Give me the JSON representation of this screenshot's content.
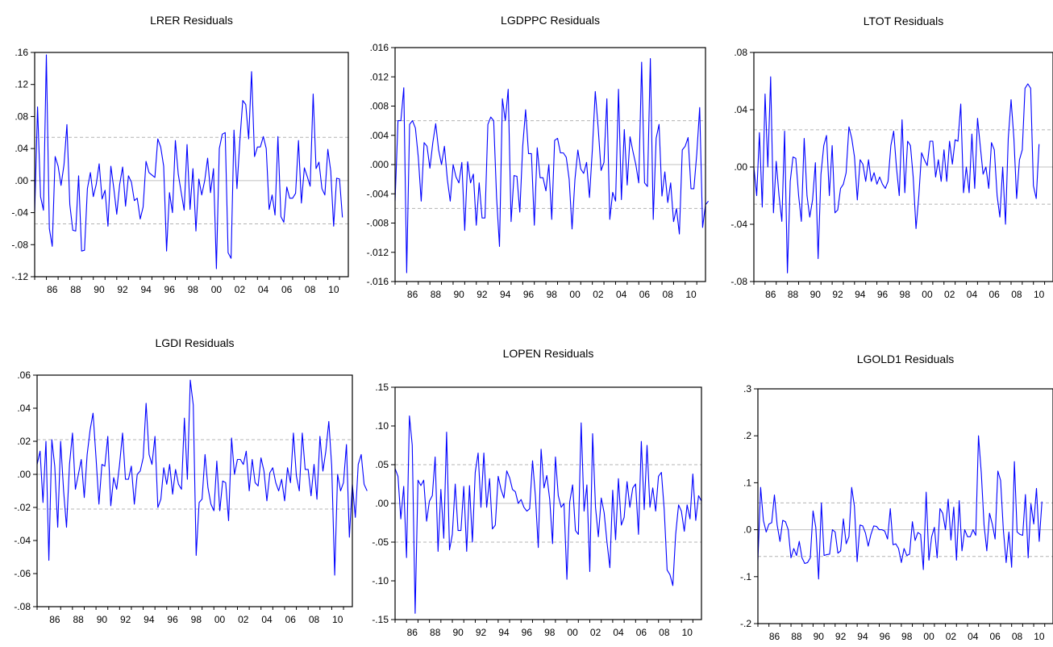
{
  "colors": {
    "series": "#0000ff",
    "band": "#b4b4b4",
    "zero": "#c0c0c0",
    "frame": "#000000"
  },
  "charts": [
    {
      "title": "LRER Residuals",
      "yticks": [
        ".16",
        ".12",
        ".08",
        ".04",
        ".00",
        "-.04",
        "-.08",
        "-.12"
      ],
      "xticks": [
        "86",
        "88",
        "90",
        "92",
        "94",
        "96",
        "98",
        "00",
        "02",
        "04",
        "06",
        "08",
        "10"
      ]
    },
    {
      "title": "LGDPPC Residuals",
      "yticks": [
        ".016",
        ".012",
        ".008",
        ".004",
        ".000",
        "-.004",
        "-.008",
        "-.012",
        "-.016"
      ],
      "xticks": [
        "86",
        "88",
        "90",
        "92",
        "94",
        "96",
        "98",
        "00",
        "02",
        "04",
        "06",
        "08",
        "10"
      ]
    },
    {
      "title": "LTOT Residuals",
      "yticks": [
        ".08",
        ".04",
        ".00",
        "-.04",
        "-.08"
      ],
      "xticks": [
        "86",
        "88",
        "90",
        "92",
        "94",
        "96",
        "98",
        "00",
        "02",
        "04",
        "06",
        "08",
        "10"
      ]
    },
    {
      "title": "LGDI Residuals",
      "yticks": [
        ".06",
        ".04",
        ".02",
        ".00",
        "-.02",
        "-.04",
        "-.06",
        "-.08"
      ],
      "xticks": [
        "86",
        "88",
        "90",
        "92",
        "94",
        "96",
        "98",
        "00",
        "02",
        "04",
        "06",
        "08",
        "10"
      ]
    },
    {
      "title": "LOPEN Residuals",
      "yticks": [
        ".15",
        ".10",
        ".05",
        ".00",
        "-.05",
        "-.10",
        "-.15"
      ],
      "xticks": [
        "86",
        "88",
        "90",
        "92",
        "94",
        "96",
        "98",
        "00",
        "02",
        "04",
        "06",
        "08",
        "10"
      ]
    },
    {
      "title": "LGOLD1 Residuals",
      "yticks": [
        ".3",
        ".2",
        ".1",
        ".0",
        "-.1",
        "-.2"
      ],
      "xticks": [
        "86",
        "88",
        "90",
        "92",
        "94",
        "96",
        "98",
        "00",
        "02",
        "04",
        "06",
        "08",
        "10"
      ]
    }
  ],
  "chart_data": [
    {
      "type": "line",
      "title": "LRER Residuals",
      "xlabel": "",
      "ylabel": "",
      "x_start": 1985.0,
      "x_step": 0.25,
      "ylim": [
        -0.12,
        0.16
      ],
      "xlim": [
        1985.0,
        2011.75
      ],
      "bands": [
        -0.054,
        0.054
      ],
      "grid": false,
      "values": [
        -0.04,
        0.092,
        -0.02,
        -0.037,
        0.157,
        -0.06,
        -0.082,
        0.03,
        0.018,
        -0.006,
        0.02,
        0.07,
        -0.03,
        -0.062,
        -0.063,
        0.006,
        -0.088,
        -0.087,
        -0.01,
        0.01,
        -0.02,
        -0.005,
        0.021,
        -0.023,
        -0.012,
        -0.057,
        0.018,
        -0.01,
        -0.042,
        -0.005,
        0.017,
        -0.032,
        0.006,
        -0.002,
        -0.025,
        -0.022,
        -0.048,
        -0.033,
        0.024,
        0.01,
        0.007,
        0.004,
        0.052,
        0.042,
        0.018,
        -0.088,
        -0.015,
        -0.04,
        0.05,
        0.008,
        -0.015,
        -0.037,
        0.045,
        -0.036,
        0.015,
        -0.063,
        0.002,
        -0.018,
        0.0,
        0.028,
        -0.015,
        0.015,
        -0.11,
        0.04,
        0.058,
        0.06,
        -0.09,
        -0.097,
        0.063,
        -0.01,
        0.05,
        0.1,
        0.095,
        0.052,
        0.136,
        0.03,
        0.042,
        0.042,
        0.055,
        0.04,
        -0.036,
        -0.018,
        -0.043,
        0.055,
        -0.045,
        -0.052,
        -0.008,
        -0.022,
        -0.022,
        -0.016,
        0.05,
        -0.028,
        0.016,
        0.005,
        -0.007,
        0.108,
        0.015,
        0.023,
        -0.01,
        -0.018,
        0.039,
        0.012,
        -0.057,
        0.003,
        0.002,
        -0.046
      ]
    },
    {
      "type": "line",
      "title": "LGDPPC Residuals",
      "xlabel": "",
      "ylabel": "",
      "x_start": 1985.0,
      "x_step": 0.25,
      "ylim": [
        -0.016,
        0.016
      ],
      "xlim": [
        1985.0,
        2011.75
      ],
      "bands": [
        -0.006,
        0.006
      ],
      "grid": false,
      "values": [
        -0.005,
        0.006,
        0.006,
        0.0105,
        -0.0148,
        0.0055,
        0.006,
        0.005,
        0.001,
        -0.005,
        0.003,
        0.0025,
        -0.0005,
        0.003,
        0.0056,
        0.002,
        0.0,
        0.0025,
        -0.002,
        -0.005,
        0.0,
        -0.0017,
        -0.0025,
        0.0003,
        -0.009,
        0.0004,
        -0.0025,
        -0.0013,
        -0.0083,
        -0.0025,
        -0.0073,
        -0.0073,
        0.0055,
        0.0065,
        0.006,
        -0.0045,
        -0.0112,
        0.009,
        0.006,
        0.0103,
        -0.0078,
        -0.0015,
        -0.0016,
        -0.0065,
        0.0025,
        0.0075,
        0.0015,
        0.0015,
        -0.0083,
        0.0023,
        -0.0018,
        -0.0018,
        -0.0036,
        0.0,
        -0.0075,
        0.0033,
        0.0036,
        0.0016,
        0.0016,
        0.001,
        -0.002,
        -0.0088,
        -0.002,
        0.002,
        -0.0006,
        -0.0012,
        0.0003,
        -0.0045,
        0.0021,
        0.01,
        0.005,
        -0.0008,
        0.0003,
        0.009,
        -0.0075,
        -0.0038,
        -0.005,
        0.0103,
        -0.0048,
        0.0048,
        -0.0028,
        0.0038,
        0.0018,
        0.0,
        -0.0025,
        0.014,
        -0.0025,
        -0.003,
        0.0145,
        -0.0075,
        0.0036,
        0.0055,
        -0.0043,
        -0.001,
        -0.0052,
        -0.0025,
        -0.0078,
        -0.006,
        -0.0095,
        0.002,
        0.0025,
        0.0037,
        -0.0033,
        -0.0033,
        0.0015,
        0.0078,
        -0.0086,
        -0.0055,
        -0.005
      ]
    },
    {
      "type": "line",
      "title": "LTOT Residuals",
      "xlabel": "",
      "ylabel": "",
      "x_start": 1985.0,
      "x_step": 0.25,
      "ylim": [
        -0.08,
        0.08
      ],
      "xlim": [
        1985.0,
        2011.75
      ],
      "bands": [
        -0.026,
        0.026
      ],
      "grid": false,
      "values": [
        0.0,
        -0.02,
        0.024,
        -0.028,
        0.051,
        0.0,
        0.063,
        -0.032,
        0.004,
        -0.02,
        -0.038,
        0.025,
        -0.074,
        -0.01,
        0.007,
        0.006,
        -0.02,
        -0.038,
        0.02,
        -0.02,
        -0.035,
        -0.023,
        0.003,
        -0.064,
        -0.005,
        0.015,
        0.022,
        -0.02,
        0.015,
        -0.032,
        -0.03,
        -0.015,
        -0.012,
        -0.004,
        0.028,
        0.02,
        0.007,
        -0.023,
        0.005,
        0.002,
        -0.01,
        0.005,
        -0.01,
        -0.004,
        -0.012,
        -0.007,
        -0.012,
        -0.015,
        -0.01,
        0.015,
        0.025,
        0.0,
        -0.02,
        0.033,
        -0.018,
        0.018,
        0.015,
        -0.007,
        -0.043,
        -0.02,
        0.01,
        0.005,
        0.001,
        0.018,
        0.018,
        -0.007,
        0.005,
        -0.01,
        0.012,
        -0.01,
        0.018,
        0.002,
        0.019,
        0.018,
        0.044,
        -0.018,
        0.0,
        -0.018,
        0.023,
        -0.015,
        0.034,
        0.014,
        -0.005,
        0.0,
        -0.015,
        0.017,
        0.012,
        -0.02,
        -0.035,
        0.0,
        -0.04,
        0.02,
        0.047,
        0.02,
        -0.022,
        0.005,
        0.012,
        0.055,
        0.058,
        0.055,
        -0.013,
        -0.022,
        0.016
      ]
    },
    {
      "type": "line",
      "title": "LGDI Residuals",
      "xlabel": "",
      "ylabel": "",
      "x_start": 1985.0,
      "x_step": 0.25,
      "ylim": [
        -0.08,
        0.06
      ],
      "xlim": [
        1985.0,
        2011.75
      ],
      "bands": [
        -0.021,
        0.021
      ],
      "grid": false,
      "values": [
        0.006,
        0.014,
        -0.017,
        0.02,
        -0.052,
        0.021,
        0.005,
        -0.032,
        0.02,
        -0.01,
        -0.032,
        0.006,
        0.025,
        -0.009,
        0.0,
        0.009,
        -0.014,
        0.012,
        0.027,
        0.037,
        0.01,
        -0.018,
        0.006,
        0.005,
        0.023,
        -0.019,
        -0.002,
        -0.009,
        0.006,
        0.025,
        -0.003,
        -0.003,
        0.005,
        -0.018,
        0.0,
        0.002,
        0.01,
        0.043,
        0.012,
        0.006,
        0.023,
        -0.02,
        -0.015,
        0.004,
        -0.006,
        0.006,
        -0.012,
        0.003,
        -0.006,
        -0.009,
        0.034,
        -0.003,
        0.057,
        0.042,
        -0.049,
        -0.017,
        -0.015,
        0.012,
        -0.008,
        -0.018,
        -0.022,
        0.008,
        -0.022,
        -0.004,
        -0.005,
        -0.028,
        0.022,
        0.0,
        0.009,
        0.009,
        0.006,
        0.014,
        -0.01,
        0.009,
        -0.005,
        -0.007,
        0.01,
        0.002,
        -0.016,
        0.001,
        0.004,
        -0.005,
        -0.01,
        -0.003,
        -0.016,
        0.004,
        -0.005,
        0.025,
        -0.001,
        -0.01,
        0.025,
        0.003,
        0.003,
        -0.013,
        0.006,
        -0.015,
        0.023,
        0.002,
        0.014,
        0.032,
        0.005,
        -0.061,
        0.0,
        -0.01,
        -0.005,
        0.018,
        -0.038,
        -0.006,
        -0.026,
        0.006,
        0.012,
        -0.006,
        -0.01
      ]
    },
    {
      "type": "line",
      "title": "LOPEN Residuals",
      "xlabel": "",
      "ylabel": "",
      "x_start": 1985.0,
      "x_step": 0.25,
      "ylim": [
        -0.15,
        0.15
      ],
      "xlim": [
        1985.0,
        2011.75
      ],
      "bands": [
        -0.05,
        0.05
      ],
      "grid": false,
      "values": [
        0.045,
        0.035,
        -0.02,
        0.022,
        -0.07,
        0.113,
        0.075,
        -0.142,
        0.03,
        0.023,
        0.03,
        -0.023,
        0.003,
        0.01,
        0.06,
        -0.062,
        0.018,
        -0.045,
        0.092,
        -0.06,
        -0.04,
        0.025,
        -0.035,
        -0.035,
        0.022,
        -0.062,
        0.023,
        -0.05,
        0.04,
        0.065,
        -0.005,
        0.065,
        -0.005,
        0.032,
        -0.033,
        -0.028,
        0.035,
        0.018,
        0.007,
        0.042,
        0.033,
        0.018,
        0.015,
        0.0,
        0.005,
        -0.005,
        -0.01,
        -0.007,
        0.055,
        0.01,
        -0.057,
        0.07,
        0.02,
        0.036,
        0.005,
        -0.052,
        0.06,
        0.01,
        -0.005,
        0.0,
        -0.098,
        0.002,
        0.024,
        -0.035,
        -0.04,
        0.104,
        -0.01,
        0.024,
        -0.088,
        0.09,
        -0.005,
        -0.043,
        0.007,
        -0.012,
        -0.05,
        -0.083,
        0.017,
        -0.047,
        0.032,
        -0.028,
        -0.018,
        0.028,
        -0.005,
        0.02,
        0.025,
        -0.04,
        0.08,
        -0.008,
        0.075,
        -0.005,
        0.02,
        -0.01,
        0.035,
        0.04,
        -0.008,
        -0.086,
        -0.092,
        -0.106,
        -0.04,
        -0.002,
        -0.01,
        -0.036,
        -0.002,
        -0.02,
        0.038,
        -0.022,
        0.01,
        0.003
      ]
    },
    {
      "type": "line",
      "title": "LGOLD1 Residuals",
      "xlabel": "",
      "ylabel": "",
      "x_start": 1985.0,
      "x_step": 0.25,
      "ylim": [
        -0.2,
        0.3
      ],
      "xlim": [
        1985.0,
        2011.75
      ],
      "bands": [
        -0.057,
        0.057
      ],
      "grid": false,
      "values": [
        -0.065,
        0.09,
        0.02,
        -0.005,
        0.012,
        0.015,
        0.074,
        0.01,
        -0.025,
        0.02,
        0.017,
        0.0,
        -0.06,
        -0.04,
        -0.055,
        -0.025,
        -0.06,
        -0.072,
        -0.07,
        -0.06,
        0.04,
        0.005,
        -0.105,
        0.057,
        -0.055,
        -0.053,
        -0.052,
        0.0,
        -0.005,
        -0.05,
        -0.045,
        0.023,
        -0.03,
        -0.015,
        0.09,
        0.05,
        -0.068,
        0.01,
        0.008,
        -0.007,
        -0.035,
        -0.01,
        0.008,
        0.007,
        0.0,
        0.0,
        -0.003,
        -0.02,
        0.045,
        -0.032,
        -0.03,
        -0.04,
        -0.07,
        -0.04,
        -0.055,
        -0.052,
        0.017,
        -0.023,
        -0.006,
        -0.01,
        -0.085,
        0.08,
        -0.065,
        -0.015,
        0.005,
        -0.06,
        0.045,
        0.035,
        0.0,
        0.065,
        -0.022,
        0.048,
        -0.065,
        0.062,
        -0.045,
        0.0,
        -0.015,
        -0.015,
        0.0,
        -0.012,
        0.2,
        0.12,
        0.01,
        -0.045,
        0.035,
        0.012,
        -0.02,
        0.125,
        0.105,
        0.0,
        -0.07,
        -0.005,
        -0.08,
        0.145,
        -0.005,
        -0.01,
        -0.012,
        0.075,
        -0.06,
        0.055,
        0.012,
        0.088,
        -0.025,
        0.06
      ]
    }
  ]
}
